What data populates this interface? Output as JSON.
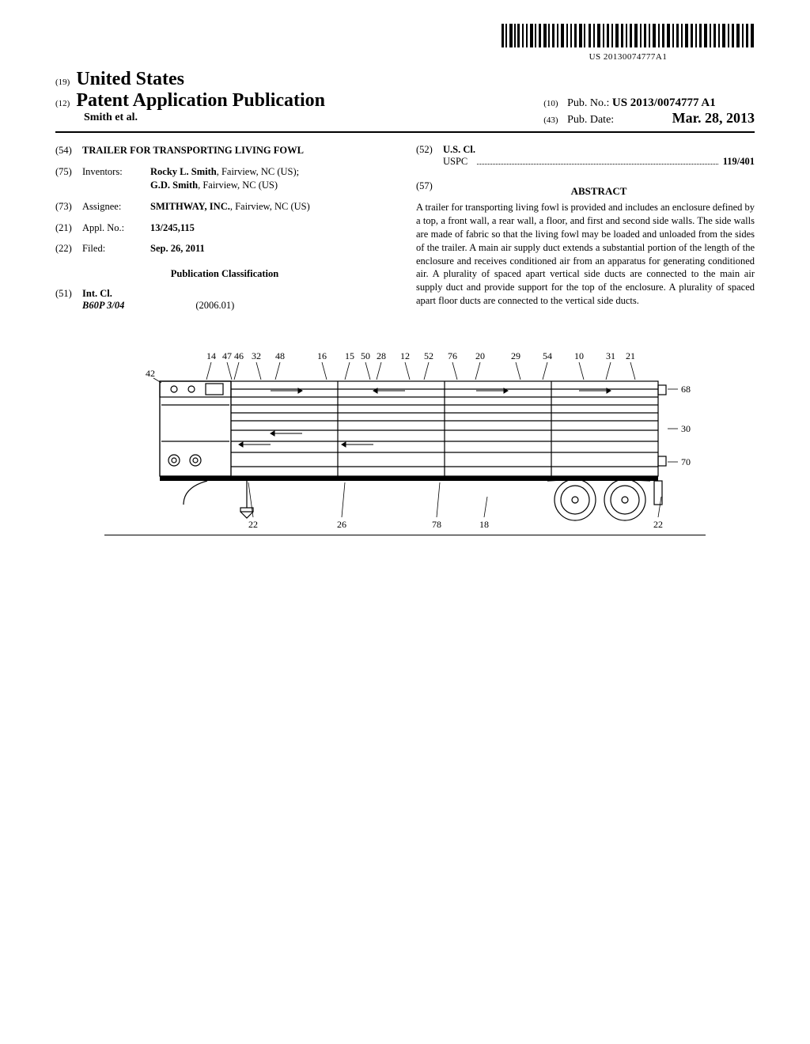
{
  "barcode": {
    "text": "US 20130074777A1"
  },
  "header": {
    "country_num": "(19)",
    "country": "United States",
    "pub_num": "(12)",
    "pub_title": "Patent Application Publication",
    "authors": "Smith et al.",
    "pubno_num": "(10)",
    "pubno_label": "Pub. No.:",
    "pubno_value": "US 2013/0074777 A1",
    "pubdate_num": "(43)",
    "pubdate_label": "Pub. Date:",
    "pubdate_value": "Mar. 28, 2013"
  },
  "left": {
    "title_num": "(54)",
    "title": "TRAILER FOR TRANSPORTING LIVING FOWL",
    "inventors_num": "(75)",
    "inventors_label": "Inventors:",
    "inventors": [
      {
        "name": "Rocky L. Smith",
        "loc": ", Fairview, NC (US);"
      },
      {
        "name": "G.D. Smith",
        "loc": ", Fairview, NC (US)"
      }
    ],
    "assignee_num": "(73)",
    "assignee_label": "Assignee:",
    "assignee_name": "SMITHWAY, INC.",
    "assignee_loc": ", Fairview, NC (US)",
    "applno_num": "(21)",
    "applno_label": "Appl. No.:",
    "applno_val": "13/245,115",
    "filed_num": "(22)",
    "filed_label": "Filed:",
    "filed_val": "Sep. 26, 2011",
    "pubclass_heading": "Publication Classification",
    "intcl_num": "(51)",
    "intcl_label": "Int. Cl.",
    "intcl_code": "B60P 3/04",
    "intcl_year": "(2006.01)"
  },
  "right": {
    "uscl_num": "(52)",
    "uscl_label": "U.S. Cl.",
    "uscl_sublabel": "USPC",
    "uscl_val": "119/401",
    "abstract_num": "(57)",
    "abstract_heading": "ABSTRACT",
    "abstract_text": "A trailer for transporting living fowl is provided and includes an enclosure defined by a top, a front wall, a rear wall, a floor, and first and second side walls. The side walls are made of fabric so that the living fowl may be loaded and unloaded from the sides of the trailer. A main air supply duct extends a substantial portion of the length of the enclosure and receives conditioned air from an apparatus for generating conditioned air. A plurality of spaced apart vertical side ducts are connected to the main air supply duct and provide support for the top of the enclosure. A plurality of spaced apart floor ducts are connected to the vertical side ducts."
  },
  "figure": {
    "labels_top": [
      "14",
      "47",
      "46",
      "32",
      "48",
      "16",
      "15",
      "50",
      "28",
      "12",
      "52",
      "76",
      "20",
      "29",
      "54",
      "10",
      "31",
      "21"
    ],
    "labels_right": [
      "68",
      "30",
      "70"
    ],
    "labels_bottom": [
      "22",
      "26",
      "78",
      "18",
      "22"
    ],
    "label_42": "42",
    "stroke": "#000000",
    "fill": "#ffffff",
    "label_fontsize": 12
  }
}
